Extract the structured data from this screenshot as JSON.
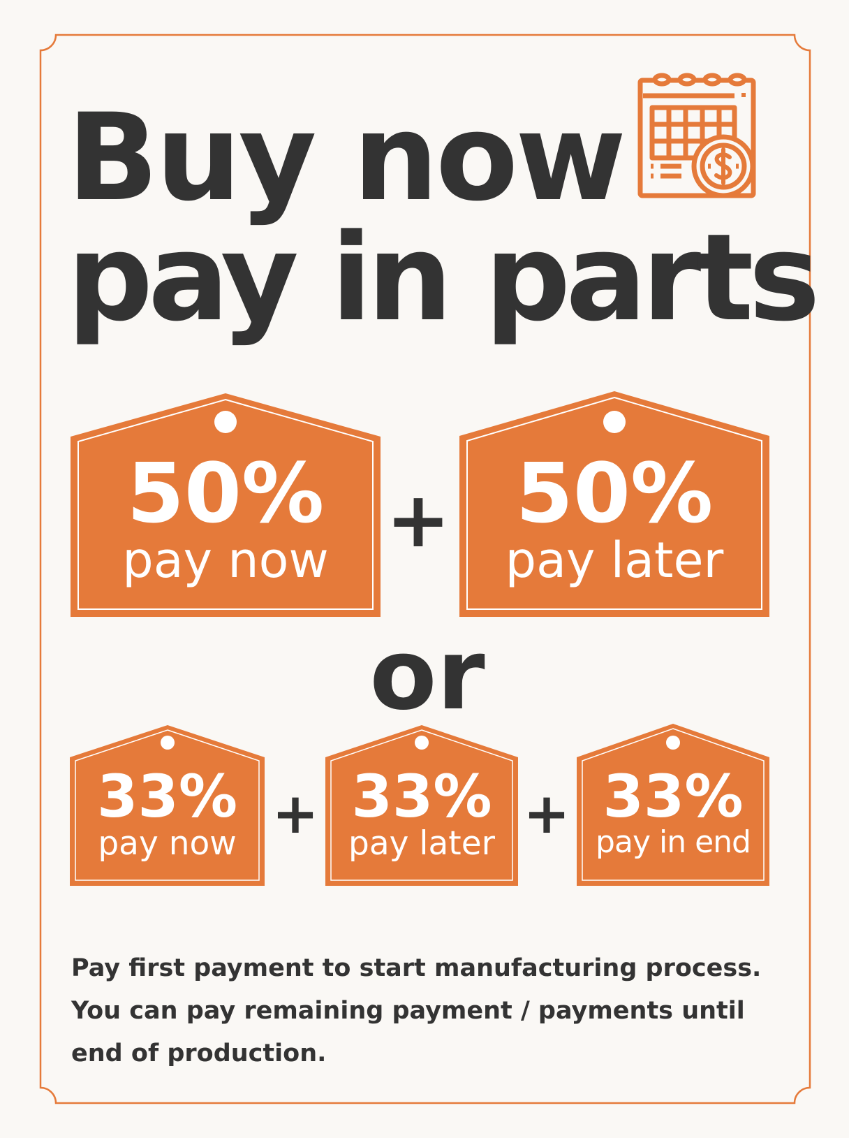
{
  "colors": {
    "accent": "#e57a3a",
    "text": "#333333",
    "background": "#faf8f5"
  },
  "header": {
    "title_line1": "Buy now",
    "title_line2": "pay in parts",
    "icon": "calendar-dollar-icon"
  },
  "plan_two_parts": {
    "tags": [
      {
        "percent": "50%",
        "label": "pay now"
      },
      {
        "percent": "50%",
        "label": "pay later"
      }
    ],
    "separator": "+"
  },
  "or_label": "or",
  "plan_three_parts": {
    "tags": [
      {
        "percent": "33%",
        "label": "pay now"
      },
      {
        "percent": "33%",
        "label": "pay later"
      },
      {
        "percent": "33%",
        "label": "pay in end"
      }
    ],
    "separator": "+"
  },
  "note": {
    "lines": [
      "Pay first payment to start manufacturing process.",
      "You can pay remaining payment / payments until",
      "end of production."
    ]
  }
}
